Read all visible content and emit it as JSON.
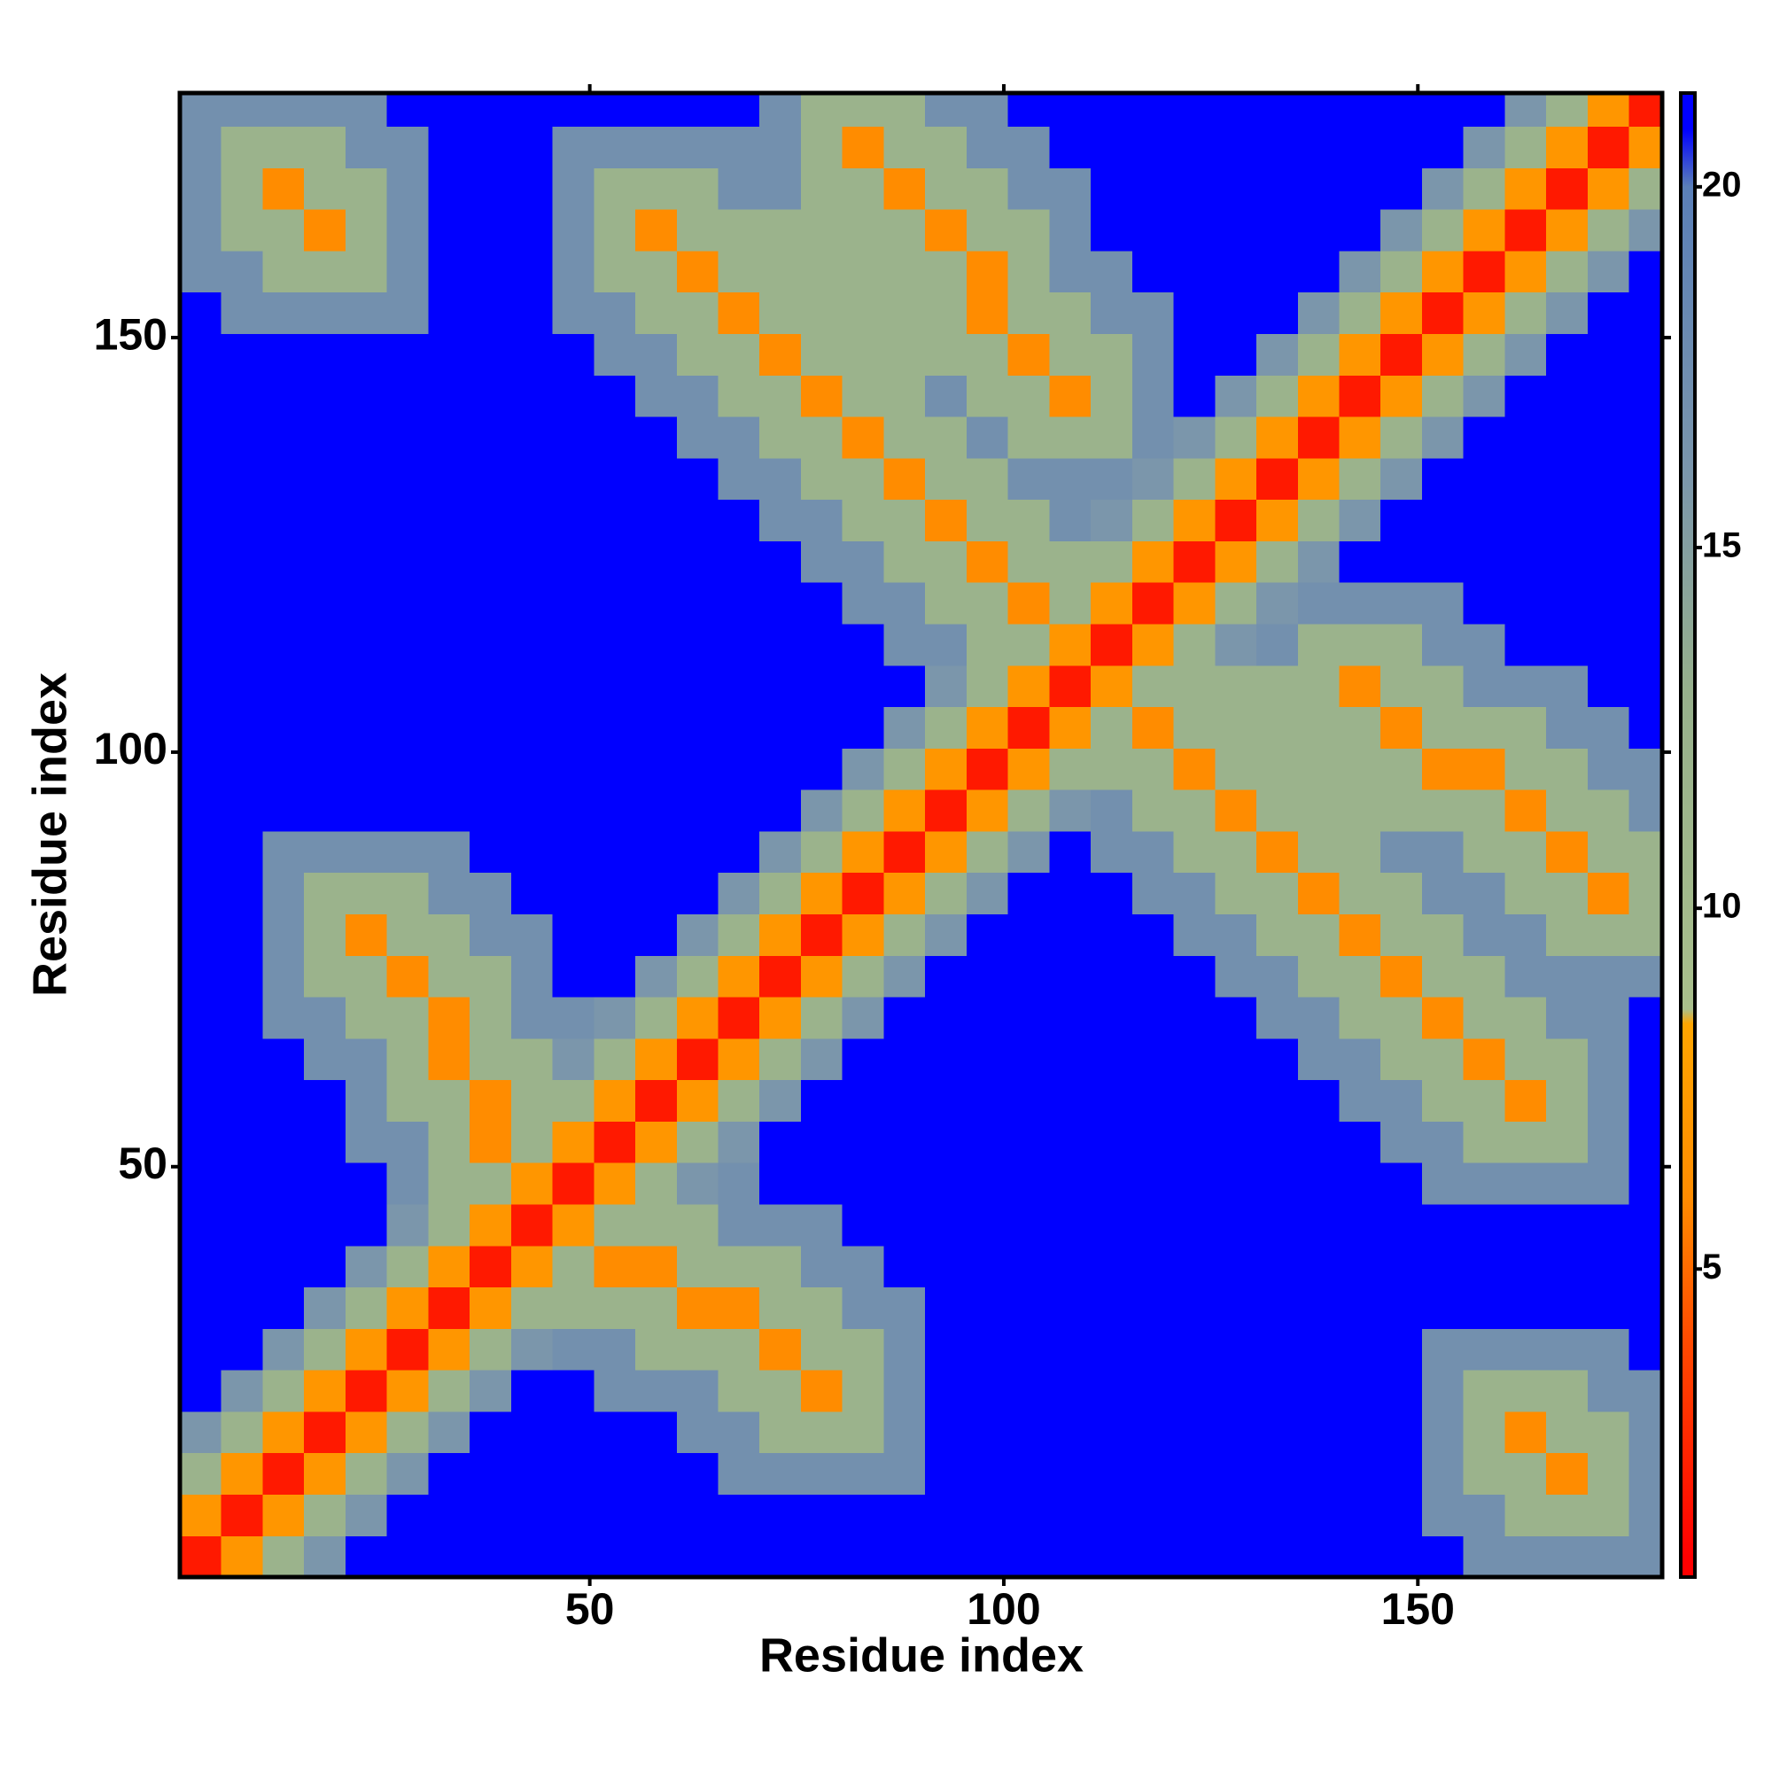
{
  "chart_data": {
    "type": "heatmap",
    "x_label": "Residue index",
    "y_label": "Residue index",
    "x": [
      3,
      8,
      13,
      18,
      23,
      28,
      33,
      38,
      43,
      48,
      53,
      58,
      63,
      68,
      73,
      78,
      83,
      88,
      93,
      98,
      103,
      108,
      113,
      118,
      123,
      128,
      133,
      138,
      143,
      148,
      153,
      158,
      163,
      168,
      173,
      178
    ],
    "y": [
      3,
      8,
      13,
      18,
      23,
      28,
      33,
      38,
      43,
      48,
      53,
      58,
      63,
      68,
      73,
      78,
      83,
      88,
      93,
      98,
      103,
      108,
      113,
      118,
      123,
      128,
      133,
      138,
      143,
      148,
      153,
      158,
      163,
      168,
      173,
      178
    ],
    "values": [
      [
        2,
        7,
        12,
        16,
        21,
        21,
        21,
        21,
        21,
        21,
        21,
        21,
        21,
        21,
        21,
        21,
        21,
        21,
        21,
        21,
        21,
        21,
        21,
        21,
        21,
        21,
        21,
        21,
        21,
        21,
        21,
        17,
        17,
        17,
        17,
        17
      ],
      [
        7,
        2,
        7,
        12,
        16,
        21,
        21,
        21,
        21,
        21,
        21,
        21,
        21,
        21,
        21,
        21,
        21,
        21,
        21,
        21,
        21,
        21,
        21,
        21,
        21,
        21,
        21,
        21,
        21,
        21,
        17,
        17,
        12,
        12,
        12,
        17
      ],
      [
        12,
        7,
        2,
        7,
        12,
        16,
        21,
        21,
        21,
        21,
        21,
        21,
        21,
        17,
        17,
        17,
        17,
        17,
        21,
        21,
        21,
        21,
        21,
        21,
        21,
        21,
        21,
        21,
        21,
        21,
        17,
        12,
        12,
        6,
        12,
        17
      ],
      [
        16,
        12,
        7,
        2,
        7,
        12,
        16,
        21,
        21,
        21,
        21,
        21,
        17,
        17,
        12,
        12,
        12,
        17,
        21,
        21,
        21,
        21,
        21,
        21,
        21,
        21,
        21,
        21,
        21,
        21,
        17,
        12,
        6,
        12,
        12,
        17
      ],
      [
        21,
        16,
        12,
        7,
        2,
        7,
        12,
        16,
        21,
        21,
        17,
        17,
        17,
        12,
        12,
        6,
        12,
        17,
        21,
        21,
        21,
        21,
        21,
        21,
        21,
        21,
        21,
        21,
        21,
        21,
        17,
        12,
        12,
        12,
        17,
        17
      ],
      [
        21,
        21,
        16,
        12,
        7,
        2,
        7,
        12,
        16,
        17,
        17,
        12,
        12,
        12,
        6,
        12,
        12,
        17,
        21,
        21,
        21,
        21,
        21,
        21,
        21,
        21,
        21,
        21,
        21,
        21,
        17,
        17,
        17,
        17,
        17,
        21
      ],
      [
        21,
        21,
        21,
        16,
        12,
        7,
        2,
        7,
        12,
        12,
        12,
        12,
        6,
        6,
        12,
        12,
        17,
        17,
        21,
        21,
        21,
        21,
        21,
        21,
        21,
        21,
        21,
        21,
        21,
        21,
        21,
        21,
        21,
        21,
        21,
        21
      ],
      [
        21,
        21,
        21,
        21,
        16,
        12,
        7,
        2,
        7,
        12,
        6,
        6,
        12,
        12,
        12,
        17,
        17,
        21,
        21,
        21,
        21,
        21,
        21,
        21,
        21,
        21,
        21,
        21,
        21,
        21,
        21,
        21,
        21,
        21,
        21,
        21
      ],
      [
        21,
        21,
        21,
        21,
        21,
        16,
        12,
        7,
        2,
        7,
        12,
        12,
        12,
        17,
        17,
        17,
        21,
        21,
        21,
        21,
        21,
        21,
        21,
        21,
        21,
        21,
        21,
        21,
        21,
        21,
        21,
        21,
        21,
        21,
        21,
        21
      ],
      [
        21,
        21,
        21,
        21,
        21,
        17,
        12,
        12,
        7,
        2,
        7,
        12,
        16,
        17,
        21,
        21,
        21,
        21,
        21,
        21,
        21,
        21,
        21,
        21,
        21,
        21,
        21,
        21,
        21,
        21,
        17,
        17,
        17,
        17,
        17,
        21
      ],
      [
        21,
        21,
        21,
        21,
        17,
        17,
        12,
        6,
        12,
        7,
        2,
        7,
        12,
        16,
        21,
        21,
        21,
        21,
        21,
        21,
        21,
        21,
        21,
        21,
        21,
        21,
        21,
        21,
        21,
        17,
        17,
        12,
        12,
        12,
        17,
        21
      ],
      [
        21,
        21,
        21,
        21,
        17,
        12,
        12,
        6,
        12,
        12,
        7,
        2,
        7,
        12,
        16,
        21,
        21,
        21,
        21,
        21,
        21,
        21,
        21,
        21,
        21,
        21,
        21,
        21,
        17,
        17,
        12,
        12,
        6,
        12,
        17,
        21
      ],
      [
        21,
        21,
        21,
        17,
        17,
        12,
        6,
        12,
        12,
        16,
        12,
        7,
        2,
        7,
        12,
        16,
        21,
        21,
        21,
        21,
        21,
        21,
        21,
        21,
        21,
        21,
        21,
        17,
        17,
        12,
        12,
        6,
        12,
        12,
        17,
        21
      ],
      [
        21,
        21,
        17,
        17,
        12,
        12,
        6,
        12,
        17,
        17,
        16,
        12,
        7,
        2,
        7,
        12,
        16,
        21,
        21,
        21,
        21,
        21,
        21,
        21,
        21,
        21,
        17,
        17,
        12,
        12,
        6,
        12,
        12,
        17,
        17,
        21
      ],
      [
        21,
        21,
        17,
        12,
        12,
        6,
        12,
        12,
        17,
        21,
        21,
        16,
        12,
        7,
        2,
        7,
        12,
        16,
        21,
        21,
        21,
        21,
        21,
        21,
        21,
        17,
        17,
        12,
        12,
        6,
        12,
        12,
        17,
        17,
        17,
        17
      ],
      [
        21,
        21,
        17,
        12,
        6,
        12,
        12,
        17,
        17,
        21,
        21,
        21,
        16,
        12,
        7,
        2,
        7,
        12,
        16,
        21,
        21,
        21,
        21,
        21,
        17,
        17,
        12,
        12,
        6,
        12,
        12,
        17,
        17,
        12,
        12,
        12
      ],
      [
        21,
        21,
        17,
        12,
        12,
        12,
        17,
        17,
        21,
        21,
        21,
        21,
        21,
        16,
        12,
        7,
        2,
        7,
        12,
        16,
        21,
        21,
        21,
        17,
        17,
        12,
        12,
        6,
        12,
        12,
        17,
        17,
        12,
        12,
        6,
        12
      ],
      [
        21,
        21,
        17,
        17,
        17,
        17,
        17,
        21,
        21,
        21,
        21,
        21,
        21,
        21,
        16,
        12,
        7,
        2,
        7,
        12,
        16,
        21,
        17,
        17,
        12,
        12,
        6,
        12,
        12,
        17,
        17,
        12,
        12,
        6,
        12,
        12
      ],
      [
        21,
        21,
        21,
        21,
        21,
        21,
        21,
        21,
        21,
        21,
        21,
        21,
        21,
        21,
        21,
        16,
        12,
        7,
        2,
        7,
        12,
        16,
        17,
        12,
        12,
        6,
        12,
        12,
        12,
        12,
        12,
        12,
        6,
        12,
        12,
        17
      ],
      [
        21,
        21,
        21,
        21,
        21,
        21,
        21,
        21,
        21,
        21,
        21,
        21,
        21,
        21,
        21,
        21,
        16,
        12,
        7,
        2,
        7,
        12,
        12,
        12,
        6,
        12,
        12,
        12,
        12,
        12,
        6,
        6,
        12,
        12,
        17,
        17
      ],
      [
        21,
        21,
        21,
        21,
        21,
        21,
        21,
        21,
        21,
        21,
        21,
        21,
        21,
        21,
        21,
        21,
        21,
        16,
        12,
        7,
        2,
        7,
        12,
        6,
        12,
        12,
        12,
        12,
        12,
        6,
        12,
        12,
        12,
        17,
        17,
        21
      ],
      [
        21,
        21,
        21,
        21,
        21,
        21,
        21,
        21,
        21,
        21,
        21,
        21,
        21,
        21,
        21,
        21,
        21,
        21,
        16,
        12,
        7,
        2,
        7,
        12,
        12,
        12,
        12,
        12,
        6,
        12,
        12,
        17,
        17,
        17,
        21,
        21
      ],
      [
        21,
        21,
        21,
        21,
        21,
        21,
        21,
        21,
        21,
        21,
        21,
        21,
        21,
        21,
        21,
        21,
        21,
        17,
        17,
        12,
        12,
        7,
        2,
        7,
        12,
        16,
        17,
        12,
        12,
        12,
        17,
        17,
        21,
        21,
        21,
        21
      ],
      [
        21,
        21,
        21,
        21,
        21,
        21,
        21,
        21,
        21,
        21,
        21,
        21,
        21,
        21,
        21,
        21,
        17,
        17,
        12,
        12,
        6,
        12,
        7,
        2,
        7,
        12,
        16,
        17,
        17,
        17,
        17,
        21,
        21,
        21,
        21,
        21
      ],
      [
        21,
        21,
        21,
        21,
        21,
        21,
        21,
        21,
        21,
        21,
        21,
        21,
        21,
        21,
        21,
        17,
        17,
        12,
        12,
        6,
        12,
        12,
        12,
        7,
        2,
        7,
        12,
        16,
        21,
        21,
        21,
        21,
        21,
        21,
        21,
        21
      ],
      [
        21,
        21,
        21,
        21,
        21,
        21,
        21,
        21,
        21,
        21,
        21,
        21,
        21,
        21,
        17,
        17,
        12,
        12,
        6,
        12,
        12,
        17,
        16,
        12,
        7,
        2,
        7,
        12,
        16,
        21,
        21,
        21,
        21,
        21,
        21,
        21
      ],
      [
        21,
        21,
        21,
        21,
        21,
        21,
        21,
        21,
        21,
        21,
        21,
        21,
        21,
        17,
        17,
        12,
        12,
        6,
        12,
        12,
        17,
        17,
        17,
        16,
        12,
        7,
        2,
        7,
        12,
        16,
        21,
        21,
        21,
        21,
        21,
        21
      ],
      [
        21,
        21,
        21,
        21,
        21,
        21,
        21,
        21,
        21,
        21,
        21,
        21,
        17,
        17,
        12,
        12,
        6,
        12,
        12,
        17,
        12,
        12,
        12,
        17,
        16,
        12,
        7,
        2,
        7,
        12,
        16,
        21,
        21,
        21,
        21,
        21
      ],
      [
        21,
        21,
        21,
        21,
        21,
        21,
        21,
        21,
        21,
        21,
        21,
        17,
        17,
        12,
        12,
        6,
        12,
        12,
        17,
        12,
        12,
        6,
        12,
        17,
        21,
        16,
        12,
        7,
        2,
        7,
        12,
        16,
        21,
        21,
        21,
        21
      ],
      [
        21,
        21,
        21,
        21,
        21,
        21,
        21,
        21,
        21,
        21,
        17,
        17,
        12,
        12,
        6,
        12,
        12,
        12,
        12,
        12,
        6,
        12,
        12,
        17,
        21,
        21,
        16,
        12,
        7,
        2,
        7,
        12,
        16,
        21,
        21,
        21
      ],
      [
        21,
        17,
        17,
        17,
        17,
        17,
        21,
        21,
        21,
        17,
        17,
        12,
        12,
        6,
        12,
        12,
        12,
        12,
        12,
        6,
        12,
        12,
        17,
        17,
        21,
        21,
        21,
        16,
        12,
        7,
        2,
        7,
        12,
        16,
        21,
        21
      ],
      [
        17,
        17,
        12,
        12,
        12,
        17,
        21,
        21,
        21,
        17,
        12,
        12,
        6,
        12,
        12,
        12,
        12,
        12,
        12,
        6,
        12,
        17,
        17,
        21,
        21,
        21,
        21,
        21,
        16,
        12,
        7,
        2,
        7,
        12,
        16,
        21
      ],
      [
        17,
        12,
        12,
        6,
        12,
        17,
        21,
        21,
        21,
        17,
        12,
        6,
        12,
        12,
        12,
        12,
        12,
        12,
        6,
        12,
        12,
        17,
        21,
        21,
        21,
        21,
        21,
        21,
        21,
        16,
        12,
        7,
        2,
        7,
        12,
        16
      ],
      [
        17,
        12,
        6,
        12,
        12,
        17,
        21,
        21,
        21,
        17,
        12,
        12,
        12,
        17,
        17,
        12,
        12,
        6,
        12,
        12,
        17,
        17,
        21,
        21,
        21,
        21,
        21,
        21,
        21,
        21,
        16,
        12,
        7,
        2,
        7,
        12
      ],
      [
        17,
        12,
        12,
        12,
        17,
        17,
        21,
        21,
        21,
        17,
        17,
        17,
        17,
        17,
        17,
        12,
        6,
        12,
        12,
        17,
        17,
        21,
        21,
        21,
        21,
        21,
        21,
        21,
        21,
        21,
        21,
        16,
        12,
        7,
        2,
        7
      ],
      [
        17,
        17,
        17,
        17,
        17,
        21,
        21,
        21,
        21,
        21,
        21,
        21,
        21,
        21,
        17,
        12,
        12,
        12,
        17,
        17,
        21,
        21,
        21,
        21,
        21,
        21,
        21,
        21,
        21,
        21,
        21,
        21,
        16,
        12,
        7,
        2
      ]
    ],
    "xlim": [
      0.5,
      179.5
    ],
    "ylim": [
      0.5,
      179.5
    ],
    "xticks": [
      50,
      100,
      150
    ],
    "yticks": [
      50,
      100,
      150
    ],
    "clim": [
      0.73,
      21.3
    ],
    "cticks": [
      5,
      10,
      15,
      20
    ],
    "colorscale": [
      [
        1,
        "#ff0000"
      ],
      [
        4,
        "#ff4a00"
      ],
      [
        6,
        "#ff8c00"
      ],
      [
        8.4,
        "#ffa500"
      ],
      [
        8.6,
        "#a9bf8c"
      ],
      [
        13,
        "#97b08c"
      ],
      [
        16,
        "#7b96ab"
      ],
      [
        20,
        "#5a7fb8"
      ],
      [
        20.8,
        "#0000ff"
      ]
    ]
  }
}
